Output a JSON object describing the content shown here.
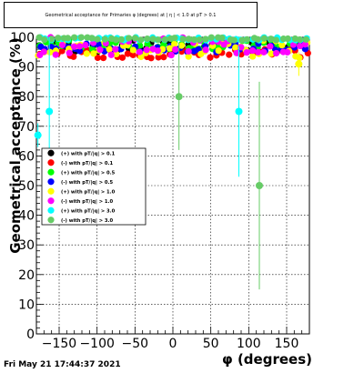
{
  "chart_data": {
    "type": "scatter",
    "title": "Geometrical acceptance for Primaries φ (degrees) at | η | < 1.0 at pT > 0.1",
    "xlabel": "φ (degrees)",
    "ylabel": "Geometrical acceptance (%)",
    "xlim": [
      -180,
      180
    ],
    "ylim": [
      0,
      100
    ],
    "x_ticks": [
      "−150",
      "−100",
      "−50",
      "0",
      "50",
      "100",
      "150"
    ],
    "y_ticks": [
      "0",
      "10",
      "20",
      "30",
      "40",
      "50",
      "60",
      "70",
      "80",
      "90",
      "100"
    ],
    "grid": true,
    "legend_placement": "left-middle",
    "series": [
      {
        "name": "(+) with pT/|q| > 0.1",
        "color": "#000000",
        "y_band": [
          95,
          99
        ]
      },
      {
        "name": "(-) with pT/|q| > 0.1",
        "color": "#ff0000",
        "y_band": [
          93,
          96
        ]
      },
      {
        "name": "(+) with pT/|q| > 0.5",
        "color": "#00ff00",
        "y_band": [
          96,
          99
        ]
      },
      {
        "name": "(-) with pT/|q| > 0.5",
        "color": "#0000ff",
        "y_band": [
          95,
          98
        ]
      },
      {
        "name": "(+) with pT/|q| > 1.0",
        "color": "#ffff00",
        "y_band": [
          93,
          99
        ]
      },
      {
        "name": "(-) with pT/|q| > 1.0",
        "color": "#ff00ff",
        "y_band": [
          94,
          100
        ]
      },
      {
        "name": "(+) with pT/|q| > 3.0",
        "color": "#00ffff",
        "y_band": [
          99,
          100
        ]
      },
      {
        "name": "(-) with pT/|q| > 3.0",
        "color": "#66cc66",
        "y_band": [
          99,
          100
        ]
      }
    ],
    "outliers": [
      {
        "series": 6,
        "x": -178,
        "y": 67,
        "err": 4
      },
      {
        "series": 6,
        "x": -163,
        "y": 75,
        "err": 25
      },
      {
        "series": 7,
        "x": 8,
        "y": 80,
        "err": 18
      },
      {
        "series": 6,
        "x": 87,
        "y": 75,
        "err": 22
      },
      {
        "series": 7,
        "x": 114,
        "y": 50,
        "err": 35
      },
      {
        "series": 4,
        "x": 166,
        "y": 91,
        "err": 4
      }
    ]
  },
  "footer": "Fri May 21 17:44:37 2021"
}
